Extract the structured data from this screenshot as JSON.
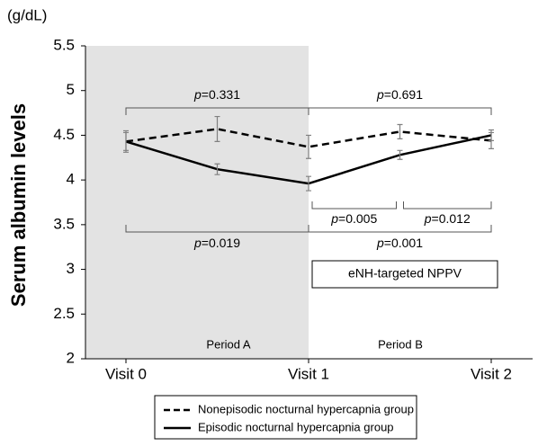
{
  "chart_data": {
    "type": "line",
    "y_unit": "(g/dL)",
    "ylabel": "Serum albumin levels",
    "categories": [
      "Visit 0",
      null,
      "Visit 1",
      null,
      "Visit 2"
    ],
    "series": [
      {
        "name": "Nonepisodic nocturnal hypercapnia group",
        "color": "#000000",
        "dash": true,
        "values": [
          4.43,
          4.57,
          4.37,
          4.54,
          4.44
        ],
        "errors": [
          0.12,
          0.14,
          0.13,
          0.08,
          0.09
        ]
      },
      {
        "name": "Episodic nocturnal hypercapnia group",
        "color": "#000000",
        "dash": false,
        "values": [
          4.43,
          4.12,
          3.96,
          4.28,
          4.5
        ],
        "errors": [
          0.1,
          0.06,
          0.08,
          0.05,
          0.06
        ]
      }
    ],
    "ylim": [
      2,
      5.5
    ],
    "yticks": [
      2,
      2.5,
      3,
      3.5,
      4,
      4.5,
      5,
      5.5
    ],
    "annotations": [
      "p=0.331",
      "p=0.691",
      "p=0.019",
      "p=0.005",
      "p=0.012",
      "p=0.001"
    ],
    "note": "eNH-targeted NPPV",
    "periods": [
      "Period A",
      "Period B"
    ],
    "error_color": "#808080",
    "shade_color": "#e3e3e3"
  }
}
